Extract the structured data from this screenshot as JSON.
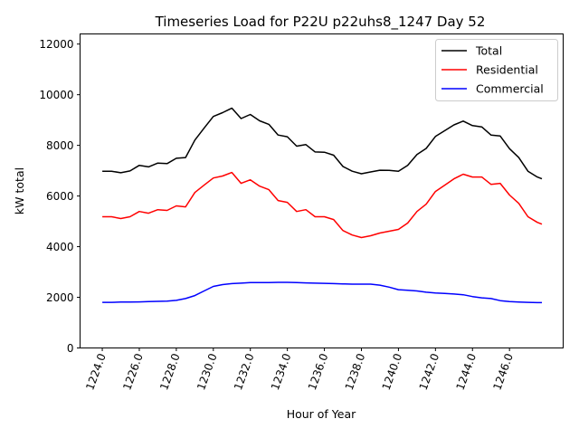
{
  "chart_data": {
    "type": "line",
    "title": "Timeseries Load for P22U p22uhs8_1247  Day 52",
    "xlabel": "Hour of Year",
    "ylabel": "kW total",
    "xlim": [
      1222.8,
      1248.9
    ],
    "ylim": [
      0,
      12400
    ],
    "grid": false,
    "legend_placement": "top-right",
    "xticks": [
      1224,
      1226,
      1228,
      1230,
      1232,
      1234,
      1236,
      1238,
      1240,
      1242,
      1244,
      1246
    ],
    "xtick_labels": [
      "1224.0",
      "1226.0",
      "1228.0",
      "1230.0",
      "1232.0",
      "1234.0",
      "1236.0",
      "1238.0",
      "1240.0",
      "1242.0",
      "1244.0",
      "1246.0"
    ],
    "yticks": [
      0,
      2000,
      4000,
      6000,
      8000,
      10000,
      12000
    ],
    "ytick_labels": [
      "0",
      "2000",
      "4000",
      "6000",
      "8000",
      "10000",
      "12000"
    ],
    "x": [
      1224,
      1224.5,
      1225,
      1225.5,
      1226,
      1226.5,
      1227,
      1227.5,
      1228,
      1228.5,
      1229,
      1229.5,
      1230,
      1230.5,
      1231,
      1231.5,
      1232,
      1232.5,
      1233,
      1233.5,
      1234,
      1234.5,
      1235,
      1235.5,
      1236,
      1236.5,
      1237,
      1237.5,
      1238,
      1238.5,
      1239,
      1239.5,
      1240,
      1240.5,
      1241,
      1241.5,
      1242,
      1242.5,
      1243,
      1243.5,
      1244,
      1244.5,
      1245,
      1245.5,
      1246,
      1246.5,
      1247,
      1247.5,
      1247.75
    ],
    "series": [
      {
        "name": "Total",
        "color": "#000000",
        "values": [
          6980,
          6980,
          6920,
          6990,
          7210,
          7150,
          7300,
          7280,
          7490,
          7520,
          8210,
          8680,
          9140,
          9290,
          9470,
          9060,
          9220,
          8970,
          8830,
          8410,
          8340,
          7970,
          8030,
          7740,
          7730,
          7610,
          7170,
          6980,
          6880,
          6950,
          7020,
          7010,
          6980,
          7210,
          7640,
          7880,
          8350,
          8580,
          8810,
          8960,
          8780,
          8730,
          8410,
          8370,
          7870,
          7520,
          6980,
          6750,
          6680
        ]
      },
      {
        "name": "Residential",
        "color": "#ff0000",
        "values": [
          5180,
          5180,
          5110,
          5180,
          5390,
          5320,
          5460,
          5430,
          5610,
          5570,
          6140,
          6430,
          6710,
          6790,
          6930,
          6500,
          6640,
          6390,
          6250,
          5820,
          5750,
          5390,
          5460,
          5180,
          5180,
          5070,
          4640,
          4460,
          4360,
          4430,
          4540,
          4610,
          4680,
          4930,
          5390,
          5680,
          6180,
          6430,
          6680,
          6860,
          6750,
          6750,
          6460,
          6500,
          6040,
          5710,
          5180,
          4960,
          4890
        ]
      },
      {
        "name": "Commercial",
        "color": "#0000ff",
        "values": [
          1800,
          1800,
          1810,
          1810,
          1820,
          1830,
          1840,
          1850,
          1880,
          1950,
          2070,
          2250,
          2430,
          2500,
          2540,
          2560,
          2580,
          2580,
          2580,
          2590,
          2590,
          2580,
          2570,
          2560,
          2550,
          2540,
          2530,
          2520,
          2520,
          2520,
          2480,
          2400,
          2300,
          2280,
          2250,
          2200,
          2170,
          2150,
          2130,
          2100,
          2030,
          1980,
          1950,
          1870,
          1830,
          1810,
          1800,
          1790,
          1790
        ]
      }
    ]
  }
}
